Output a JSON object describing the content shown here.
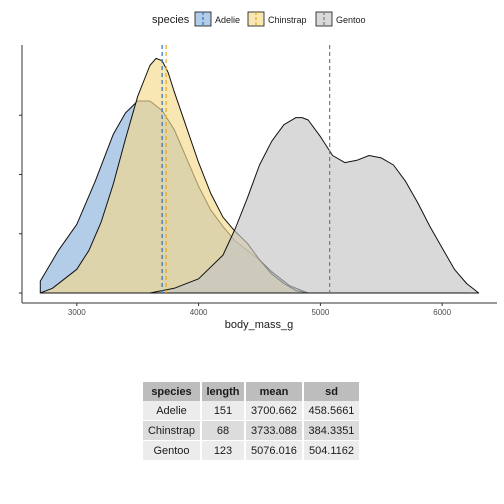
{
  "chart_data": [
    {
      "type": "area",
      "xlabel": "body_mass_g",
      "ylabel": "",
      "xlim": [
        2550,
        6450
      ],
      "ylim": [
        0,
        1.0
      ],
      "x_ticks": [
        3000,
        4000,
        5000,
        6000
      ],
      "grid": false,
      "legend": {
        "title": "species",
        "position": "top"
      },
      "series": [
        {
          "name": "Adelie",
          "fill": "#8ab0db",
          "mean_line_color": "#2e6fc4",
          "mean": 3700.662,
          "x": [
            2700,
            2850,
            3000,
            3150,
            3300,
            3400,
            3500,
            3600,
            3700,
            3800,
            3900,
            4000,
            4100,
            4200,
            4300,
            4400,
            4500,
            4600,
            4750,
            4900
          ],
          "y": [
            0.05,
            0.18,
            0.29,
            0.47,
            0.67,
            0.76,
            0.81,
            0.81,
            0.77,
            0.69,
            0.57,
            0.45,
            0.35,
            0.28,
            0.22,
            0.18,
            0.14,
            0.09,
            0.03,
            0.0
          ]
        },
        {
          "name": "Chinstrap",
          "fill": "#f5d98a",
          "mean_line_color": "#e8a91a",
          "mean": 3733.088,
          "x": [
            2700,
            2800,
            2900,
            3000,
            3100,
            3200,
            3300,
            3400,
            3500,
            3600,
            3650,
            3700,
            3750,
            3800,
            3900,
            4000,
            4100,
            4200,
            4300,
            4400,
            4500,
            4600,
            4700,
            4800,
            4900
          ],
          "y": [
            0.0,
            0.02,
            0.06,
            0.1,
            0.18,
            0.3,
            0.46,
            0.65,
            0.83,
            0.96,
            0.99,
            0.98,
            0.93,
            0.85,
            0.7,
            0.55,
            0.42,
            0.32,
            0.26,
            0.21,
            0.14,
            0.08,
            0.04,
            0.01,
            0.0
          ]
        },
        {
          "name": "Gentoo",
          "fill": "#c4c4c4",
          "mean_line_color": "#7a7a7a",
          "mean": 5076.016,
          "x": [
            3600,
            3800,
            4000,
            4200,
            4300,
            4400,
            4500,
            4600,
            4700,
            4800,
            4850,
            4900,
            5000,
            5100,
            5200,
            5300,
            5400,
            5500,
            5600,
            5700,
            5800,
            5900,
            6000,
            6100,
            6200,
            6300
          ],
          "y": [
            0.0,
            0.02,
            0.06,
            0.16,
            0.27,
            0.4,
            0.54,
            0.64,
            0.71,
            0.74,
            0.74,
            0.73,
            0.66,
            0.58,
            0.55,
            0.56,
            0.58,
            0.57,
            0.54,
            0.47,
            0.38,
            0.28,
            0.19,
            0.1,
            0.04,
            0.0
          ]
        }
      ]
    },
    {
      "type": "table",
      "columns": [
        "species",
        "length",
        "mean",
        "sd"
      ],
      "rows": [
        [
          "Adelie",
          "151",
          "3700.662",
          "458.5661"
        ],
        [
          "Chinstrap",
          "68",
          "3733.088",
          "384.3351"
        ],
        [
          "Gentoo",
          "123",
          "5076.016",
          "504.1162"
        ]
      ]
    }
  ]
}
